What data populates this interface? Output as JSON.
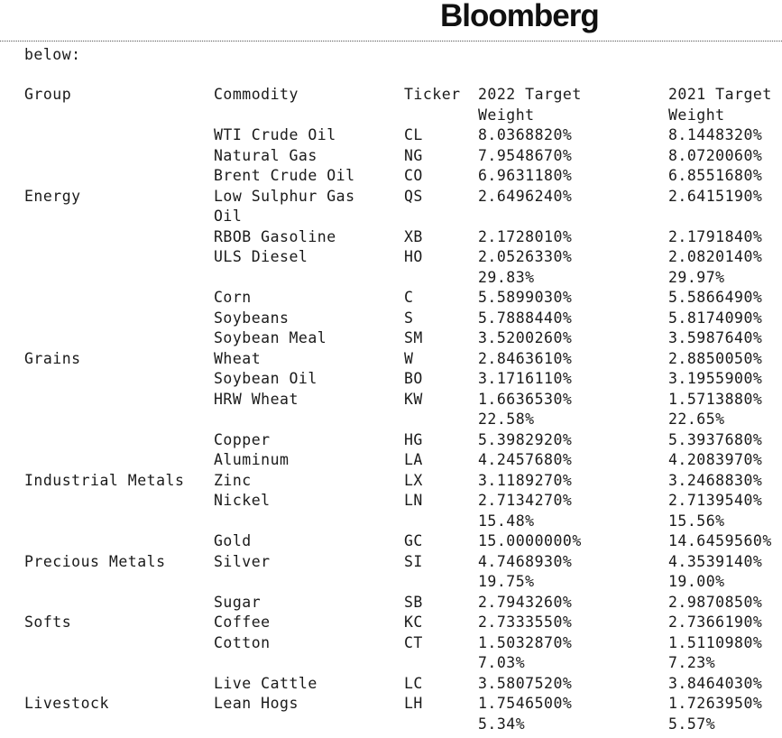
{
  "brand": "Bloomberg",
  "intro": "below:",
  "headers": {
    "group": "Group",
    "commodity": "Commodity",
    "ticker": "Ticker",
    "w2022": "2022 Target\nWeight",
    "w2021": "2021 Target\nWeight"
  },
  "groups": [
    {
      "name": "Energy",
      "items": [
        {
          "commodity": "WTI Crude Oil",
          "ticker": "CL",
          "w2022": "8.0368820%",
          "w2021": "8.1448320%"
        },
        {
          "commodity": "Natural Gas",
          "ticker": "NG",
          "w2022": "7.9548670%",
          "w2021": "8.0720060%"
        },
        {
          "commodity": "Brent Crude Oil",
          "ticker": "CO",
          "w2022": "6.9631180%",
          "w2021": "6.8551680%"
        },
        {
          "commodity": "Low Sulphur Gas\nOil",
          "ticker": "QS",
          "w2022": "2.6496240%",
          "w2021": "2.6415190%"
        },
        {
          "commodity": "RBOB Gasoline",
          "ticker": "XB",
          "w2022": "2.1728010%",
          "w2021": "2.1791840%"
        },
        {
          "commodity": "ULS Diesel",
          "ticker": "HO",
          "w2022": "2.0526330%",
          "w2021": "2.0820140%"
        }
      ],
      "total2022": "29.83%",
      "total2021": "29.97%"
    },
    {
      "name": "Grains",
      "items": [
        {
          "commodity": "Corn",
          "ticker": "C",
          "w2022": "5.5899030%",
          "w2021": "5.5866490%"
        },
        {
          "commodity": "Soybeans",
          "ticker": "S",
          "w2022": "5.7888440%",
          "w2021": "5.8174090%"
        },
        {
          "commodity": "Soybean Meal",
          "ticker": "SM",
          "w2022": "3.5200260%",
          "w2021": "3.5987640%"
        },
        {
          "commodity": "Wheat",
          "ticker": "W",
          "w2022": "2.8463610%",
          "w2021": "2.8850050%"
        },
        {
          "commodity": "Soybean Oil",
          "ticker": "BO",
          "w2022": "3.1716110%",
          "w2021": "3.1955900%"
        },
        {
          "commodity": "HRW Wheat",
          "ticker": "KW",
          "w2022": "1.6636530%",
          "w2021": "1.5713880%"
        }
      ],
      "total2022": "22.58%",
      "total2021": "22.65%"
    },
    {
      "name": "Industrial Metals",
      "items": [
        {
          "commodity": "Copper",
          "ticker": "HG",
          "w2022": "5.3982920%",
          "w2021": "5.3937680%"
        },
        {
          "commodity": "Aluminum",
          "ticker": "LA",
          "w2022": "4.2457680%",
          "w2021": "4.2083970%"
        },
        {
          "commodity": "Zinc",
          "ticker": "LX",
          "w2022": "3.1189270%",
          "w2021": "3.2468830%"
        },
        {
          "commodity": "Nickel",
          "ticker": "LN",
          "w2022": "2.7134270%",
          "w2021": "2.7139540%"
        }
      ],
      "total2022": "15.48%",
      "total2021": "15.56%"
    },
    {
      "name": "Precious Metals",
      "items": [
        {
          "commodity": "Gold",
          "ticker": "GC",
          "w2022": "15.0000000%",
          "w2021": "14.6459560%"
        },
        {
          "commodity": "Silver",
          "ticker": "SI",
          "w2022": "4.7468930%",
          "w2021": "4.3539140%"
        }
      ],
      "total2022": "19.75%",
      "total2021": "19.00%"
    },
    {
      "name": "Softs",
      "items": [
        {
          "commodity": "Sugar",
          "ticker": "SB",
          "w2022": "2.7943260%",
          "w2021": "2.9870850%"
        },
        {
          "commodity": "Coffee",
          "ticker": "KC",
          "w2022": "2.7333550%",
          "w2021": "2.7366190%"
        },
        {
          "commodity": "Cotton",
          "ticker": "CT",
          "w2022": "1.5032870%",
          "w2021": "1.5110980%"
        }
      ],
      "total2022": "7.03%",
      "total2021": "7.23%"
    },
    {
      "name": "Livestock",
      "items": [
        {
          "commodity": "Live Cattle",
          "ticker": "LC",
          "w2022": "3.5807520%",
          "w2021": "3.8464030%"
        },
        {
          "commodity": "Lean Hogs",
          "ticker": "LH",
          "w2022": "1.7546500%",
          "w2021": "1.7263950%"
        }
      ],
      "total2022": "5.34%",
      "total2021": "5.57%"
    }
  ]
}
